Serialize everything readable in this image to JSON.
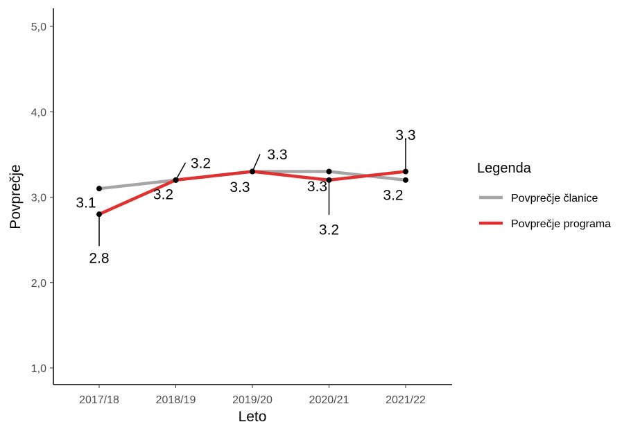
{
  "chart_data": {
    "type": "line",
    "categories": [
      "2017/18",
      "2018/19",
      "2019/20",
      "2020/21",
      "2021/22"
    ],
    "series": [
      {
        "name": "Povprečje članice",
        "color": "#a6a6a6",
        "values": [
          3.1,
          3.2,
          3.3,
          3.3,
          3.2
        ]
      },
      {
        "name": "Povprečje programa",
        "color": "#e03030",
        "values": [
          2.8,
          3.2,
          3.3,
          3.2,
          3.3
        ]
      }
    ],
    "data_labels": {
      "Povprečje članice": [
        "3.1",
        "3.2",
        "3.3",
        "3.3",
        "3.2"
      ],
      "Povprečje programa": [
        "2.8",
        "3.2",
        "3.3",
        "3.2",
        "3.3"
      ]
    },
    "xlabel": "Leto",
    "ylabel": "Povprečje",
    "ylim": [
      1.0,
      5.0
    ],
    "yticks": [
      "1,0",
      "2,0",
      "3,0",
      "4,0",
      "5,0"
    ],
    "legend_title": "Legenda",
    "legend_position": "right",
    "grid": false
  }
}
